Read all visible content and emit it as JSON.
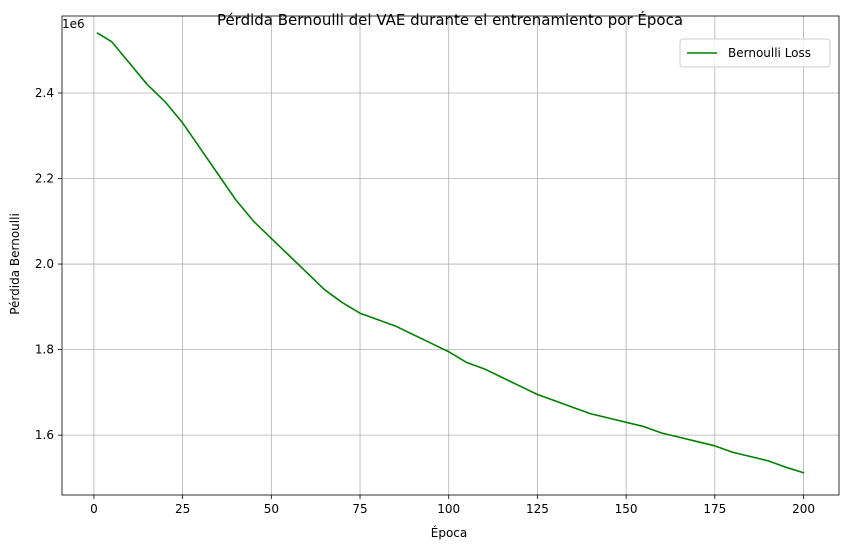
{
  "chart_data": {
    "type": "line",
    "title": "Pérdida Bernoulli del VAE durante el entrenamiento por Época",
    "xlabel": "Época",
    "ylabel": "Pérdida Bernoulli",
    "offset_label": "1e6",
    "xlim": [
      -9,
      210
    ],
    "ylim": [
      1.46,
      2.58
    ],
    "xticks": [
      0,
      25,
      50,
      75,
      100,
      125,
      150,
      175,
      200
    ],
    "yticks": [
      1.6,
      1.8,
      2.0,
      2.2,
      2.4
    ],
    "ytick_labels": [
      "1.6",
      "1.8",
      "2.0",
      "2.2",
      "2.4"
    ],
    "grid": true,
    "legend_position": "top-right",
    "series": [
      {
        "name": "Bernoulli Loss",
        "color": "#008000",
        "x": [
          1,
          5,
          10,
          15,
          20,
          25,
          30,
          35,
          40,
          45,
          50,
          55,
          60,
          65,
          70,
          75,
          80,
          85,
          90,
          95,
          100,
          105,
          110,
          115,
          120,
          125,
          130,
          135,
          140,
          145,
          150,
          155,
          160,
          165,
          170,
          175,
          180,
          185,
          190,
          195,
          200
        ],
        "y": [
          2.54,
          2.52,
          2.47,
          2.42,
          2.38,
          2.33,
          2.27,
          2.21,
          2.15,
          2.1,
          2.06,
          2.02,
          1.98,
          1.94,
          1.91,
          1.885,
          1.87,
          1.855,
          1.835,
          1.815,
          1.795,
          1.77,
          1.755,
          1.735,
          1.715,
          1.695,
          1.68,
          1.665,
          1.65,
          1.64,
          1.63,
          1.62,
          1.605,
          1.595,
          1.585,
          1.575,
          1.56,
          1.55,
          1.54,
          1.525,
          1.512
        ]
      }
    ]
  }
}
